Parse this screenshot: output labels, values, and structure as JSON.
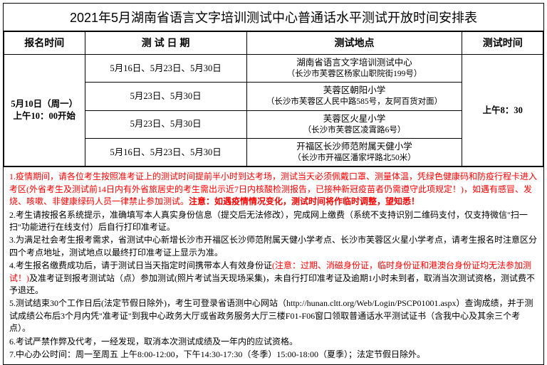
{
  "title": "2021年5月湖南省语言文字培训测试中心普通话水平测试开放时间安排表",
  "headers": {
    "reg": "报名时间",
    "date": "测 试 日 期",
    "loc": "测试地点",
    "time": "测试时间"
  },
  "reg_cell": "5月10日（周一）\n上午10：00开始",
  "time_cell": "上午8：30",
  "rows": [
    {
      "date": "5月16日、5月23日、5月30日",
      "loc_main": "湖南省语言文字培训测试中心",
      "loc_sub": "（长沙市芙蓉区杨家山职院街199号）"
    },
    {
      "date": "5月23日、5月30日",
      "loc_main": "芙蓉区朝阳小学",
      "loc_sub": "（长沙市芙蓉区人民中路585号，友阿百货对面）"
    },
    {
      "date": "5月23日、5月30日",
      "loc_main": "芙蓉区火星小学",
      "loc_sub": "（长沙市芙蓉区凌霄路6号）"
    },
    {
      "date": "5月16日、5月23日、5月30日",
      "loc_main": "开福区长沙师范附属天健小学",
      "loc_sub": "（长沙市开福区潘家坪路北50米）"
    }
  ],
  "notes": {
    "n1a": "1.疫情期间，请各位考生按照准考证上的测试时间提前半小时到达考场，测试当天必须佩戴口罩、测量体温，凭绿色健康码和防疫行程卡进入考区(外省考生及测试前14日内有外省旅居史的考生需出示近7日内核酸检测报告，已接种新冠疫苗者仍需遵守此项规定！)，如遇有感冒、发烧、咳嗽、非健康绿码人员一律禁止参加测试。",
    "n1b": "注意：如遇疫情情况变化，测试时间将作临时调整，望知悉！",
    "n2": "2.考生请按报名系统提示，准确填写本人真实身份信息（提交后无法修改），完成网上缴费（系统不支持识别二维码支付，仅支持微信\"扫一扫\"功能进行在线支付）后自行打印准考证。",
    "n3": "3.为满足社会考生报考需求，省测试中心新增长沙市开福区长沙师范附属天健小学考点、长沙市芙蓉区火星小学考点，请考生报名时注意区分四个考点地址，测试地点以最终打印准考证上显示为准。",
    "n4a": "4.考生报名缴费成功后，请于测试日当天指定时间携带本人有效身份证",
    "n4b": "(注意：过期、消磁身份证，临时身份证和港澳台身份证均无法参加测试！)",
    "n4c": "及准考证到报考测试站（点）参加测试(照片考试当天现场采集)，未自行打印准考证及逾期1小时未到者，取消当次测试资格，测试费不予退还。",
    "n5": "5.测试结束30个工作日后(法定节假日除外)，考生可登录省语测中心网站（http://hunan.cltt.org/Web/Login/PSCP01001.aspx）查询成绩，并于测试成绩公布后3个月内凭\"准考证\"到我中心政务大厅或省政务服务大厅三楼F01-F06窗口领取普通话水平测试证书（含我中心及其余三个考点）。",
    "n6": "6.考试严禁作弊及代考，一经发现，取消本次测试成绩及一年内的应试资格。",
    "n7": "7.中心办公时间：周一至周五 上午8:00-12:00，下午14:30-17:30（冬季）15:00-18:00（夏季）；法定节假日除外。"
  }
}
